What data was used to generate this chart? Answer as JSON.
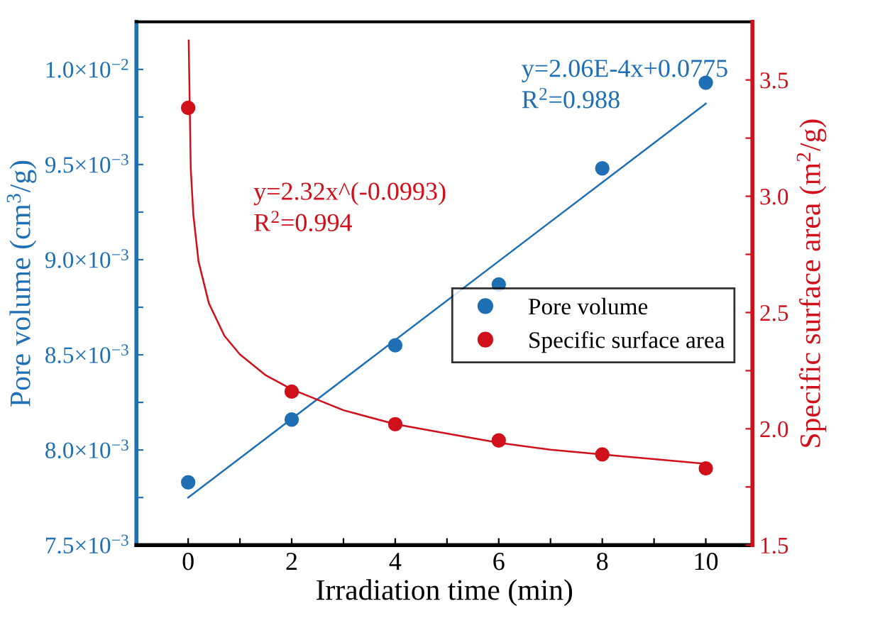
{
  "chart_data": {
    "type": "scatter",
    "xlabel": "Irradiation time (min)",
    "ylabel": "Pore volume (cm$^{3}$/g)",
    "y2label": "Specific surface area (m$^{2}$/g)",
    "xlim": [
      -1,
      10.9
    ],
    "xticks": [
      0,
      {
        "value": 1,
        "label": null
      },
      2,
      {
        "value": 3,
        "label": null
      },
      4,
      {
        "value": 5,
        "label": null
      },
      6,
      {
        "value": 7,
        "label": null
      },
      8,
      {
        "value": 9,
        "label": null
      },
      10
    ],
    "ylim": [
      0.0075,
      0.01025
    ],
    "yticks": [
      {
        "value": 0.0075,
        "label": "7.5×10$^{−3}$"
      },
      {
        "value": 0.00775,
        "label": null
      },
      {
        "value": 0.008,
        "label": "8.0×10$^{−3}$"
      },
      {
        "value": 0.00825,
        "label": null
      },
      {
        "value": 0.0085,
        "label": "8.5×10$^{−3}$"
      },
      {
        "value": 0.00875,
        "label": null
      },
      {
        "value": 0.009,
        "label": "9.0×10$^{−3}$"
      },
      {
        "value": 0.00925,
        "label": null
      },
      {
        "value": 0.0095,
        "label": "9.5×10$^{−3}$"
      },
      {
        "value": 0.00975,
        "label": null
      },
      {
        "value": 0.01,
        "label": "1.0×10$^{−2}$"
      }
    ],
    "y2lim": [
      1.5,
      3.75
    ],
    "y2ticks": [
      1.5,
      {
        "value": 1.75,
        "label": null
      },
      {
        "value": 2,
        "label": "2.0"
      },
      {
        "value": 2.25,
        "label": null
      },
      2.5,
      {
        "value": 2.75,
        "label": null
      },
      {
        "value": 3,
        "label": "3.0"
      },
      {
        "value": 3.25,
        "label": null
      },
      3.5
    ],
    "grid": false,
    "legend": "right",
    "series": [
      {
        "name": "Pore volume",
        "marker": "circle",
        "axis": "y",
        "color": "#1f6fb4",
        "x": [
          0,
          2,
          4,
          6,
          8,
          10
        ],
        "values": [
          0.00783,
          0.00816,
          0.00855,
          0.00887,
          0.00948,
          0.00993
        ]
      },
      {
        "type": "line",
        "marker": "none",
        "axis": "y",
        "color": "#1f6fb4",
        "x": [
          0,
          10
        ],
        "values": [
          0.00775,
          0.00982
        ]
      },
      {
        "name": "Specific surface area",
        "marker": "circle",
        "axis": "y2",
        "color": "#d0101a",
        "x": [
          0,
          2,
          4,
          6,
          8,
          10
        ],
        "values": [
          3.38,
          2.16,
          2.02,
          1.95,
          1.89,
          1.83
        ]
      },
      {
        "type": "line",
        "marker": "none",
        "axis": "y2",
        "color": "#d0101a",
        "x": [
          0.01,
          0.05,
          0.1,
          0.2,
          0.4,
          0.7,
          1,
          1.5,
          2,
          3,
          4,
          5,
          6,
          7,
          8,
          9,
          10
        ],
        "values": [
          3.67,
          3.12,
          2.92,
          2.72,
          2.54,
          2.4,
          2.32,
          2.23,
          2.17,
          2.08,
          2.02,
          1.98,
          1.94,
          1.91,
          1.89,
          1.87,
          1.85
        ]
      }
    ],
    "annotations": [
      "y=2.06E-4x+0.0775",
      "R$^{2}$=0.988",
      "y=2.32x^(-0.0993)",
      "R$^{2}$=0.994"
    ]
  }
}
